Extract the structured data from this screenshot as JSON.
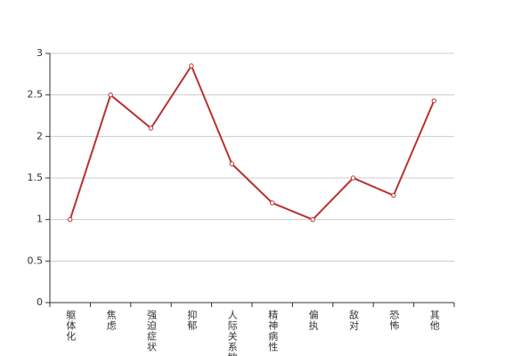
{
  "chart_data": {
    "type": "line",
    "categories": [
      "躯体化",
      "焦虑",
      "强迫症状",
      "抑郁",
      "人际关系敏感",
      "精神病性",
      "偏执",
      "敌对",
      "恐怖",
      "其他"
    ],
    "values": [
      1,
      2.5,
      2.1,
      2.85,
      1.67,
      1.2,
      1,
      1.5,
      1.29,
      2.43
    ],
    "color": "#b83232",
    "ylim": [
      0,
      3
    ],
    "yticks": [
      0,
      0.5,
      1,
      1.5,
      2,
      2.5,
      3
    ],
    "grid": true
  }
}
